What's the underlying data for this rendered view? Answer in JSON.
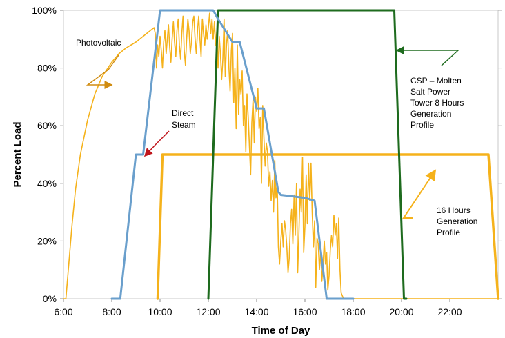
{
  "chart_data": {
    "type": "line",
    "title": "",
    "xlabel": "Time of Day",
    "ylabel": "Percent Load",
    "xlim": [
      6,
      24
    ],
    "ylim": [
      0,
      100
    ],
    "x_ticks": [
      6,
      8,
      10,
      12,
      14,
      16,
      18,
      20,
      22
    ],
    "x_tick_labels": [
      "6:00",
      "8:00",
      "10:00",
      "12:00",
      "14:00",
      "16:00",
      "18:00",
      "20:00",
      "22:00"
    ],
    "y_ticks": [
      0,
      20,
      40,
      60,
      80,
      100
    ],
    "y_tick_labels": [
      "0%",
      "20%",
      "40%",
      "60%",
      "80%",
      "100%"
    ],
    "grid": false,
    "legend": "none",
    "colors": {
      "photovoltaic": "#f5b21b",
      "direct_steam": "#6a9fcc",
      "csp": "#1e6b1e",
      "sixteen_hour": "#f5b21b",
      "arrow_photovoltaic": "#d08c10",
      "arrow_direct_steam": "#c0151b",
      "arrow_csp": "#1e6b1e",
      "arrow_16h": "#f5b21b"
    },
    "series": [
      {
        "id": "photovoltaic",
        "x": [
          6.0,
          6.1,
          6.2,
          6.35,
          6.5,
          6.7,
          7.0,
          7.3,
          7.6,
          8.0,
          8.3,
          8.6,
          9.0,
          9.3,
          9.6,
          9.75,
          9.8,
          9.85,
          9.9,
          9.95,
          10.0,
          10.05,
          10.1,
          10.15,
          10.2,
          10.25,
          10.3,
          10.35,
          10.4,
          10.45,
          10.5,
          10.55,
          10.6,
          10.65,
          10.7,
          10.75,
          10.8,
          10.85,
          10.9,
          10.95,
          11.0,
          11.05,
          11.1,
          11.15,
          11.2,
          11.25,
          11.3,
          11.35,
          11.4,
          11.45,
          11.5,
          11.55,
          11.6,
          11.65,
          11.7,
          11.75,
          11.8,
          11.85,
          11.9,
          11.95,
          12.0,
          12.05,
          12.1,
          12.15,
          12.2,
          12.25,
          12.3,
          12.35,
          12.4,
          12.45,
          12.5,
          12.55,
          12.6,
          12.65,
          12.7,
          12.75,
          12.8,
          12.85,
          12.9,
          12.95,
          13.0,
          13.05,
          13.1,
          13.15,
          13.2,
          13.25,
          13.3,
          13.35,
          13.4,
          13.45,
          13.5,
          13.55,
          13.6,
          13.65,
          13.7,
          13.75,
          13.8,
          13.85,
          13.9,
          13.95,
          14.0,
          14.05,
          14.1,
          14.15,
          14.2,
          14.25,
          14.3,
          14.35,
          14.4,
          14.45,
          14.5,
          14.55,
          14.6,
          14.65,
          14.7,
          14.75,
          14.8,
          14.85,
          14.9,
          14.95,
          15.0,
          15.05,
          15.1,
          15.15,
          15.2,
          15.25,
          15.3,
          15.35,
          15.4,
          15.45,
          15.5,
          15.55,
          15.6,
          15.65,
          15.7,
          15.75,
          15.8,
          15.85,
          15.9,
          15.95,
          16.0,
          16.05,
          16.1,
          16.15,
          16.2,
          16.25,
          16.3,
          16.35,
          16.4,
          16.45,
          16.5,
          16.55,
          16.6,
          16.65,
          16.7,
          16.75,
          16.8,
          16.85,
          16.9,
          16.95,
          17.0,
          17.05,
          17.1,
          17.15,
          17.2,
          17.25,
          17.3,
          17.35,
          17.4,
          17.45,
          17.5,
          17.6,
          18.0,
          20.0,
          22.0,
          24.0
        ],
        "y": [
          0,
          0,
          10,
          25,
          38,
          50,
          62,
          71,
          77,
          82,
          85,
          87,
          89,
          91,
          93,
          94,
          92,
          80,
          88,
          84,
          91,
          86,
          80,
          89,
          93,
          85,
          90,
          95,
          87,
          82,
          90,
          96,
          89,
          84,
          93,
          97,
          88,
          83,
          92,
          98,
          86,
          81,
          90,
          97,
          93,
          85,
          89,
          96,
          98,
          90,
          85,
          93,
          98,
          90,
          84,
          97,
          92,
          88,
          95,
          90,
          94,
          99,
          92,
          97,
          90,
          96,
          88,
          93,
          80,
          91,
          85,
          76,
          83,
          97,
          77,
          88,
          93,
          80,
          72,
          86,
          92,
          68,
          80,
          59,
          88,
          64,
          76,
          71,
          79,
          60,
          67,
          51,
          71,
          63,
          53,
          43,
          61,
          69,
          54,
          70,
          65,
          73,
          59,
          63,
          40,
          67,
          56,
          46,
          54,
          51,
          39,
          44,
          34,
          41,
          30,
          48,
          35,
          40,
          18,
          12,
          20,
          26,
          18,
          27,
          24,
          18,
          9,
          14,
          26,
          31,
          19,
          36,
          22,
          40,
          9,
          23,
          38,
          30,
          49,
          16,
          25,
          43,
          26,
          47,
          34,
          47,
          30,
          18,
          27,
          4,
          21,
          19,
          10,
          17,
          6,
          12,
          20,
          12,
          16,
          3,
          8,
          17,
          22,
          18,
          29,
          22,
          26,
          14,
          28,
          10,
          2,
          0,
          0,
          0,
          0,
          0
        ]
      },
      {
        "id": "direct_steam",
        "x": [
          8.0,
          8.3,
          8.35,
          9.0,
          9.1,
          9.25,
          9.3,
          10.0,
          10.05,
          11.0,
          12.0,
          12.2,
          12.4,
          13.0,
          13.3,
          14.0,
          14.3,
          14.9,
          15.0,
          16.0,
          16.4,
          16.9,
          16.95,
          17.3,
          18.0
        ],
        "y": [
          0,
          0,
          0,
          50,
          50,
          50,
          50,
          100,
          100,
          100,
          100,
          100,
          97,
          89,
          89,
          66,
          66,
          37,
          36,
          35,
          34,
          0,
          0,
          0,
          0
        ]
      },
      {
        "id": "csp",
        "x": [
          12.0,
          12.4,
          12.45,
          19.7,
          20.1,
          20.2
        ],
        "y": [
          0,
          100,
          100,
          100,
          0,
          0
        ]
      },
      {
        "id": "sixteen_hour",
        "x": [
          9.9,
          10.1,
          10.15,
          23.5,
          23.6,
          24.0
        ],
        "y": [
          0,
          50,
          50,
          50,
          50,
          0
        ]
      }
    ],
    "annotations": [
      {
        "id": "photovoltaic",
        "lines": [
          "Photovoltaic"
        ]
      },
      {
        "id": "direct_steam",
        "lines": [
          "Direct",
          "Steam"
        ]
      },
      {
        "id": "csp",
        "lines": [
          "CSP – Molten",
          "Salt Power",
          "Tower 8 Hours",
          "Generation",
          "Profile"
        ]
      },
      {
        "id": "sixteen_hour",
        "lines": [
          "16 Hours",
          "Generation",
          "Profile"
        ]
      }
    ]
  }
}
